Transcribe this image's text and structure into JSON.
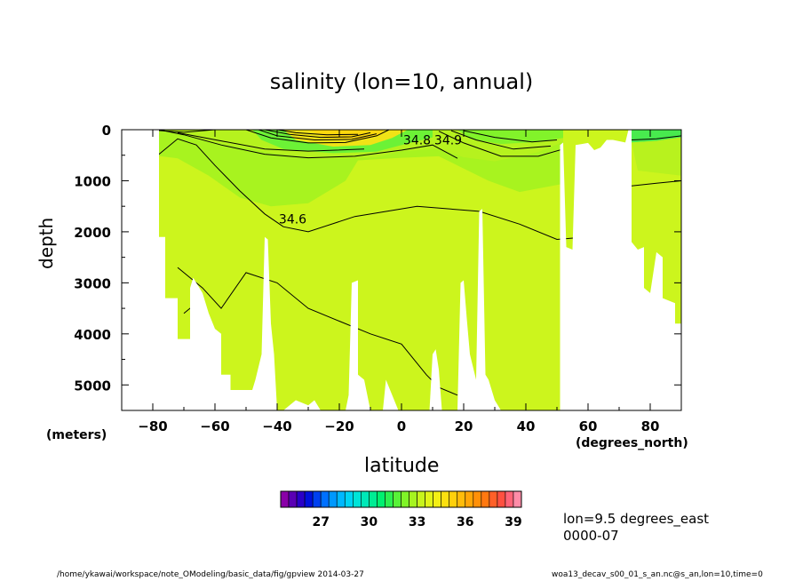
{
  "chart_data": {
    "type": "heatmap",
    "title": "salinity (lon=10, annual)",
    "xlabel": "latitude",
    "ylabel": "depth",
    "x_units": "(degrees_north)",
    "y_units": "(meters)",
    "xlim": [
      -90,
      90
    ],
    "ylim": [
      5500,
      0
    ],
    "x_ticks": [
      -80,
      -60,
      -40,
      -20,
      0,
      20,
      40,
      60,
      80
    ],
    "y_ticks": [
      0,
      1000,
      2000,
      3000,
      4000,
      5000
    ],
    "contour_labels": [
      {
        "text": "34.6",
        "x": -35,
        "y": 1750
      },
      {
        "text": "34.8",
        "x": 5,
        "y": 200
      },
      {
        "text": "34.9",
        "x": 15,
        "y": 200
      }
    ],
    "colorbar": {
      "ticks": [
        27,
        30,
        33,
        36,
        39
      ],
      "min": 25,
      "max": 40,
      "n_bins": 30,
      "colors": [
        "#8a00a8",
        "#5a00b4",
        "#2a00c8",
        "#0010dc",
        "#0040f0",
        "#0070ff",
        "#0098ff",
        "#00b8ff",
        "#00d4f4",
        "#00e4d8",
        "#00e8b8",
        "#00ec94",
        "#00f070",
        "#2cf050",
        "#58f238",
        "#80f428",
        "#a6f420",
        "#c8f41c",
        "#e2f418",
        "#f4f014",
        "#fce010",
        "#ffd00c",
        "#ffbc0a",
        "#ffa608",
        "#ff9008",
        "#ff7810",
        "#ff6028",
        "#ff5040",
        "#ff6478",
        "#ff8ca8"
      ]
    },
    "field_colors": {
      "deep_water": "#ccf51d",
      "intermediate_water": "#a8f31f",
      "surface_warm": "#f0e316",
      "surface_cool": "#82f32a",
      "arctic": "#48ea4e"
    }
  },
  "info": {
    "line1": "lon=9.5 degrees_east",
    "line2": "0000-07"
  },
  "footer": {
    "left": "/home/ykawai/workspace/note_OModeling/basic_data/fig/gpview  2014-03-27",
    "right": "woa13_decav_s00_01_s_an.nc@s_an,lon=10,time=0"
  }
}
